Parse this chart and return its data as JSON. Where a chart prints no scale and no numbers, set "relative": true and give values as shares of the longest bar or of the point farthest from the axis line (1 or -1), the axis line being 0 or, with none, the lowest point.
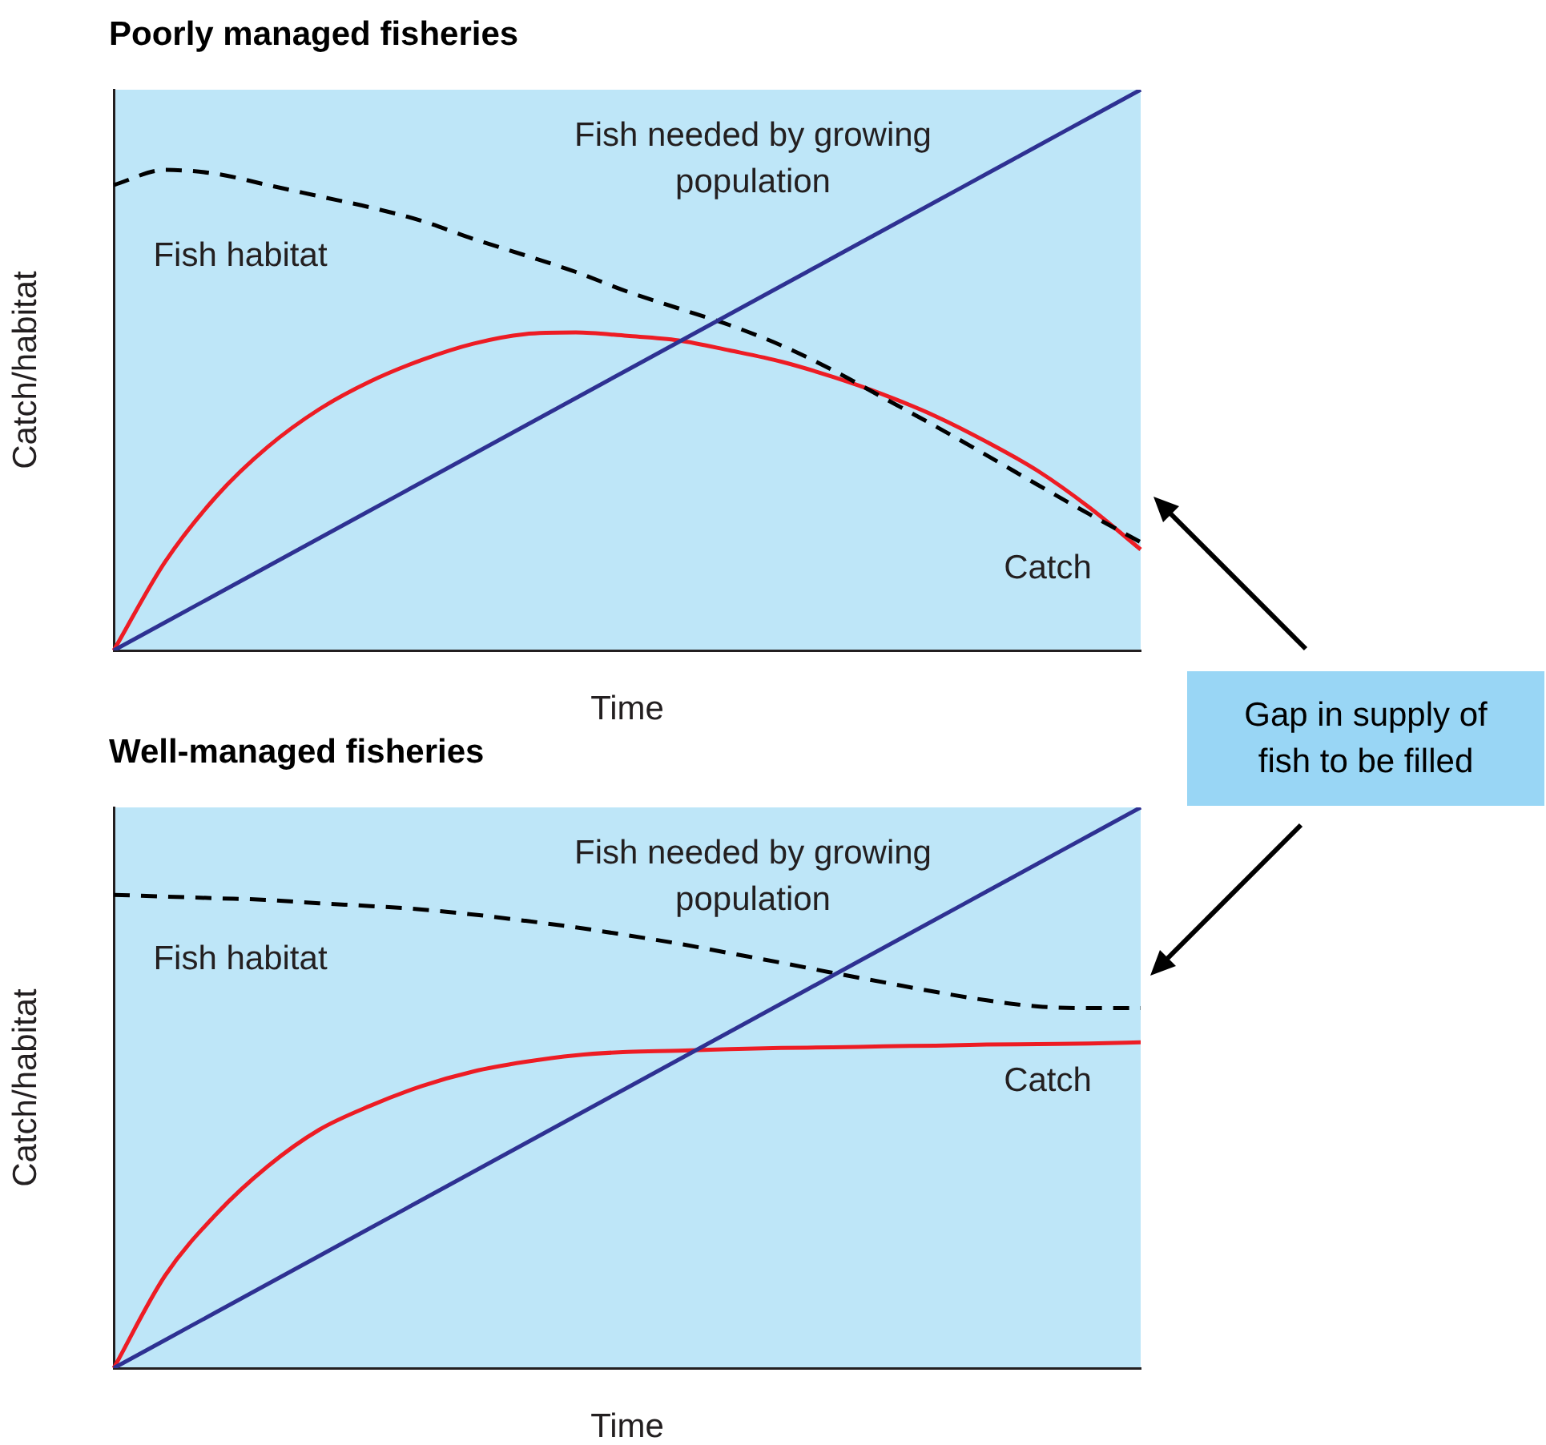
{
  "chart_data": [
    {
      "type": "line",
      "relative": true,
      "title": "Poorly managed fisheries",
      "xlabel": "Time",
      "ylabel": "Catch/habitat",
      "annotations": [
        "Gap in supply of fish to be filled"
      ],
      "categories": [
        null,
        null,
        null,
        null,
        null,
        null,
        null,
        null,
        null,
        null,
        null,
        null,
        null,
        null,
        null,
        null,
        null,
        null,
        null,
        null,
        null
      ],
      "series": [
        {
          "name": "Fish needed by growing population",
          "color": "#2e3192",
          "line_style": "solid",
          "values": [
            0,
            0.05,
            0.1,
            0.15,
            0.2,
            0.25,
            0.3,
            0.35,
            0.4,
            0.45,
            0.5,
            0.55,
            0.6,
            0.65,
            0.7,
            0.75,
            0.8,
            0.85,
            0.9,
            0.95,
            1
          ]
        },
        {
          "name": "Fish habitat",
          "color": "#000000",
          "line_style": "dashed",
          "values": [
            0.83,
            0.857,
            0.85,
            0.83,
            0.81,
            0.79,
            0.766,
            0.734,
            0.705,
            0.675,
            0.64,
            0.61,
            0.58,
            0.544,
            0.5,
            0.45,
            0.4,
            0.348,
            0.295,
            0.243,
            0.193
          ]
        },
        {
          "name": "Catch",
          "color": "#ed1c24",
          "line_style": "solid",
          "values": [
            0,
            0.158,
            0.275,
            0.363,
            0.43,
            0.48,
            0.518,
            0.547,
            0.564,
            0.567,
            0.561,
            0.553,
            0.535,
            0.515,
            0.488,
            0.456,
            0.418,
            0.372,
            0.32,
            0.255,
            0.18
          ]
        }
      ]
    },
    {
      "type": "line",
      "relative": true,
      "title": "Well-managed fisheries",
      "xlabel": "Time",
      "ylabel": "Catch/habitat",
      "categories": [
        null,
        null,
        null,
        null,
        null,
        null,
        null,
        null,
        null,
        null,
        null,
        null,
        null,
        null,
        null,
        null,
        null,
        null,
        null,
        null,
        null
      ],
      "series": [
        {
          "name": "Fish needed by growing population",
          "color": "#2e3192",
          "line_style": "solid",
          "values": [
            0,
            0.05,
            0.1,
            0.15,
            0.2,
            0.25,
            0.3,
            0.35,
            0.4,
            0.45,
            0.5,
            0.55,
            0.6,
            0.65,
            0.7,
            0.75,
            0.8,
            0.85,
            0.9,
            0.95,
            1
          ]
        },
        {
          "name": "Fish habitat",
          "color": "#000000",
          "line_style": "dashed",
          "values": [
            0.844,
            0.841,
            0.838,
            0.835,
            0.829,
            0.824,
            0.818,
            0.809,
            0.798,
            0.786,
            0.772,
            0.757,
            0.74,
            0.723,
            0.705,
            0.688,
            0.671,
            0.656,
            0.645,
            0.642,
            0.642
          ]
        },
        {
          "name": "Catch",
          "color": "#ed1c24",
          "line_style": "solid",
          "values": [
            0,
            0.165,
            0.275,
            0.36,
            0.425,
            0.468,
            0.503,
            0.529,
            0.546,
            0.558,
            0.564,
            0.566,
            0.569,
            0.571,
            0.572,
            0.574,
            0.575,
            0.577,
            0.578,
            0.579,
            0.581
          ]
        }
      ]
    }
  ]
}
